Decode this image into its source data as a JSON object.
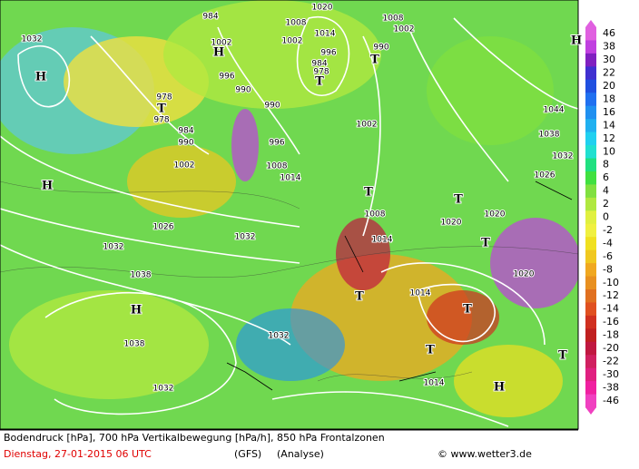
{
  "map": {
    "labels": [
      "1032",
      "H",
      "984",
      "1002",
      "H",
      "1008",
      "1020",
      "1014",
      "1002",
      "996",
      "1008",
      "1002",
      "990",
      "T",
      "984",
      "978",
      "T",
      "996",
      "990",
      "978",
      "T",
      "978",
      "984",
      "990",
      "1002",
      "990",
      "996",
      "1008",
      "1014",
      "1002",
      "1044",
      "1038",
      "1032",
      "1026",
      "H",
      "T",
      "1008",
      "1014",
      "1020",
      "T",
      "1020",
      "T",
      "1020",
      "1032",
      "1026",
      "1032",
      "1038",
      "H",
      "1038",
      "1032",
      "1032",
      "T",
      "1014",
      "T",
      "T",
      "1014",
      "H",
      "T",
      "H"
    ],
    "colorbar": {
      "labels": [
        "46",
        "38",
        "30",
        "22",
        "20",
        "18",
        "16",
        "14",
        "12",
        "10",
        "8",
        "6",
        "4",
        "2",
        "0",
        "-2",
        "-4",
        "-6",
        "-8",
        "-10",
        "-12",
        "-14",
        "-16",
        "-18",
        "-20",
        "-22",
        "-30",
        "-38",
        "-46"
      ],
      "colors": [
        "#e060e0",
        "#c040e0",
        "#8020c0",
        "#4030d0",
        "#2050e0",
        "#2070f0",
        "#2090f0",
        "#20b0f0",
        "#20d0f0",
        "#20e0d0",
        "#20e080",
        "#40e040",
        "#80e040",
        "#b0e840",
        "#e0f040",
        "#f0f040",
        "#f0e020",
        "#f0c820",
        "#f0a820",
        "#e89020",
        "#e07020",
        "#e05020",
        "#d03020",
        "#c02020",
        "#c01840",
        "#d02060",
        "#e02080",
        "#f020a0",
        "#f040c0"
      ]
    },
    "footer": {
      "line1": "Bodendruck [hPa], 700 hPa Vertikalbewegung [hPa/h], 850 hPa Frontalzonen",
      "date": "Dienstag, 27-01-2015  06 UTC",
      "model": "(GFS)",
      "run": "(Analyse)",
      "credit": "© www.wetter3.de"
    }
  }
}
